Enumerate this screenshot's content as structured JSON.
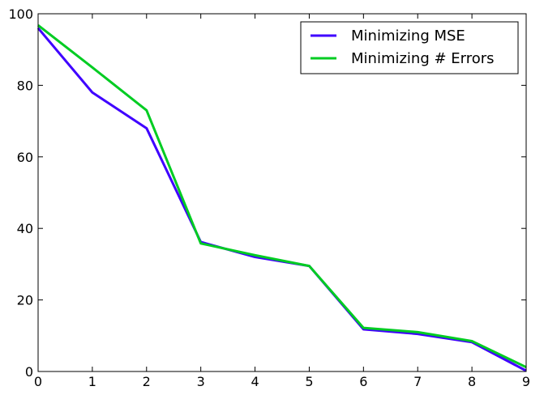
{
  "chart_data": {
    "type": "line",
    "title": "",
    "xlabel": "",
    "ylabel": "",
    "x": [
      0,
      1,
      2,
      3,
      4,
      5,
      6,
      7,
      8,
      9
    ],
    "xlim": [
      0,
      9
    ],
    "ylim": [
      0,
      100
    ],
    "xticks": [
      0,
      1,
      2,
      3,
      4,
      5,
      6,
      7,
      8,
      9
    ],
    "yticks": [
      0,
      20,
      40,
      60,
      80,
      100
    ],
    "xtick_labels": [
      "0",
      "1",
      "2",
      "3",
      "4",
      "5",
      "6",
      "7",
      "8",
      "9"
    ],
    "ytick_labels": [
      "0",
      "20",
      "40",
      "60",
      "80",
      "100"
    ],
    "grid": false,
    "legend_position": "top-right",
    "series": [
      {
        "name": "Minimizing MSE",
        "color": "#3f00ff",
        "values": [
          96.0,
          78.0,
          68.0,
          36.2,
          32.0,
          29.5,
          11.8,
          10.5,
          8.2,
          0.2
        ]
      },
      {
        "name": "Minimizing # Errors",
        "color": "#00cc22",
        "values": [
          96.8,
          85.0,
          73.0,
          35.8,
          32.5,
          29.5,
          12.2,
          11.0,
          8.5,
          1.2
        ]
      }
    ]
  }
}
